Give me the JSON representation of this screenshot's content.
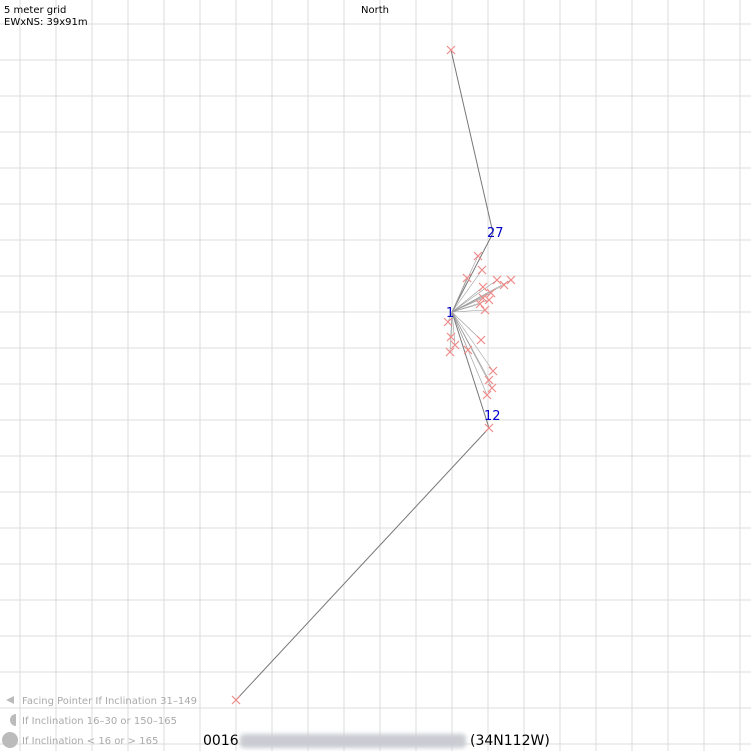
{
  "header": {
    "scale": "5 meter grid",
    "extent": "EWxNS: 39x91m",
    "north": "North"
  },
  "stations": [
    {
      "label": "27"
    },
    {
      "label": "1"
    },
    {
      "label": "12"
    }
  ],
  "legend": [
    "Facing Pointer If Inclination 31–149",
    "If Inclination 16–30 or 150–165",
    "If Inclination < 16 or > 165"
  ],
  "footer": {
    "number": "0016",
    "location": "(34N112W)"
  }
}
